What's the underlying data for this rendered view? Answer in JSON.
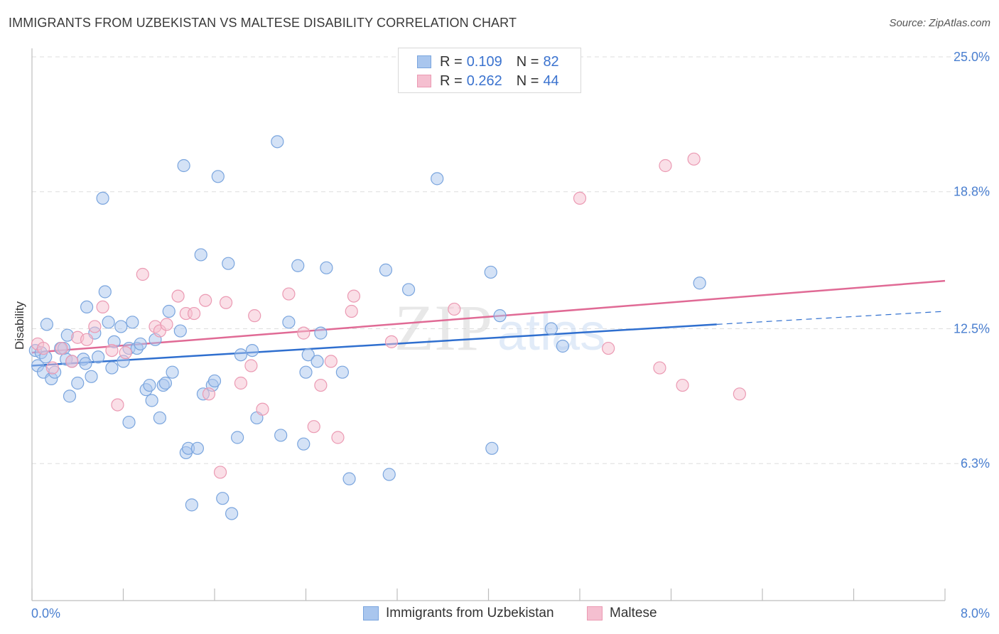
{
  "title": "IMMIGRANTS FROM UZBEKISTAN VS MALTESE DISABILITY CORRELATION CHART",
  "source": "Source: ZipAtlas.com",
  "watermark": {
    "zip": "ZIP",
    "atlas": "atlas"
  },
  "legend": {
    "rows": [
      {
        "r_label": "R =",
        "r_value": "0.109",
        "n_label": "N =",
        "n_value": "82"
      },
      {
        "r_label": "R =",
        "r_value": "0.262",
        "n_label": "N =",
        "n_value": "44"
      }
    ]
  },
  "bottom_legend": {
    "items": [
      "Immigrants from Uzbekistan",
      "Maltese"
    ]
  },
  "colors": {
    "blue_fill": "#a9c6ee",
    "blue_stroke": "#7aa5de",
    "blue_line": "#2f6fcf",
    "pink_fill": "#f5bfd0",
    "pink_stroke": "#eb9ab3",
    "pink_line": "#e06a95",
    "grid": "#dedede",
    "tick_label": "#4a7fd0"
  },
  "chart_data": {
    "type": "scatter",
    "title": "IMMIGRANTS FROM UZBEKISTAN VS MALTESE DISABILITY CORRELATION CHART",
    "xlabel": "",
    "ylabel": "Disability",
    "xlim": [
      0.0,
      8.0
    ],
    "ylim": [
      0.0,
      25.0
    ],
    "x_tick_labels": [
      "0.0%",
      "8.0%"
    ],
    "y_ticks": [
      6.3,
      12.5,
      18.8,
      25.0
    ],
    "y_tick_labels": [
      "6.3%",
      "12.5%",
      "18.8%",
      "25.0%"
    ],
    "grid": "horizontal dashed",
    "legend_position": "top-center",
    "series": [
      {
        "name": "Immigrants from Uzbekistan",
        "color": "#a9c6ee",
        "r": 0.109,
        "n": 82,
        "trend": {
          "x": [
            0.0,
            6.0
          ],
          "y": [
            10.8,
            12.7
          ],
          "dashed_extension": {
            "x": [
              6.0,
              8.0
            ],
            "y": [
              12.7,
              13.3
            ]
          }
        },
        "points": [
          [
            0.03,
            11.5
          ],
          [
            0.05,
            10.8
          ],
          [
            0.08,
            11.4
          ],
          [
            0.1,
            10.5
          ],
          [
            0.13,
            12.7
          ],
          [
            0.17,
            10.2
          ],
          [
            0.2,
            10.5
          ],
          [
            0.25,
            11.6
          ],
          [
            0.28,
            11.6
          ],
          [
            0.3,
            11.1
          ],
          [
            0.31,
            12.2
          ],
          [
            0.33,
            9.4
          ],
          [
            0.4,
            10.0
          ],
          [
            0.45,
            11.1
          ],
          [
            0.47,
            10.9
          ],
          [
            0.48,
            13.5
          ],
          [
            0.52,
            10.3
          ],
          [
            0.55,
            12.3
          ],
          [
            0.58,
            11.2
          ],
          [
            0.62,
            18.5
          ],
          [
            0.64,
            14.2
          ],
          [
            0.67,
            12.8
          ],
          [
            0.7,
            10.7
          ],
          [
            0.72,
            11.9
          ],
          [
            0.78,
            12.6
          ],
          [
            0.8,
            11.0
          ],
          [
            0.85,
            11.6
          ],
          [
            0.85,
            8.2
          ],
          [
            0.88,
            12.8
          ],
          [
            0.92,
            11.6
          ],
          [
            0.95,
            11.8
          ],
          [
            1.0,
            9.7
          ],
          [
            1.03,
            9.9
          ],
          [
            1.05,
            9.2
          ],
          [
            1.08,
            12.0
          ],
          [
            1.12,
            8.4
          ],
          [
            1.15,
            9.9
          ],
          [
            1.17,
            10.0
          ],
          [
            1.2,
            13.3
          ],
          [
            1.23,
            10.5
          ],
          [
            1.3,
            12.4
          ],
          [
            1.33,
            20.0
          ],
          [
            1.35,
            6.8
          ],
          [
            1.37,
            7.0
          ],
          [
            1.4,
            4.4
          ],
          [
            1.45,
            7.0
          ],
          [
            1.48,
            15.9
          ],
          [
            1.5,
            9.5
          ],
          [
            1.58,
            9.9
          ],
          [
            1.6,
            10.1
          ],
          [
            1.63,
            19.5
          ],
          [
            1.67,
            4.7
          ],
          [
            1.72,
            15.5
          ],
          [
            1.75,
            4.0
          ],
          [
            1.8,
            7.5
          ],
          [
            1.83,
            11.3
          ],
          [
            1.93,
            11.5
          ],
          [
            1.97,
            8.4
          ],
          [
            2.15,
            21.1
          ],
          [
            2.18,
            7.6
          ],
          [
            2.25,
            12.8
          ],
          [
            2.33,
            15.4
          ],
          [
            2.38,
            7.2
          ],
          [
            2.4,
            10.5
          ],
          [
            2.42,
            11.3
          ],
          [
            2.5,
            11.0
          ],
          [
            2.53,
            12.3
          ],
          [
            2.58,
            15.3
          ],
          [
            2.72,
            10.5
          ],
          [
            2.78,
            5.6
          ],
          [
            3.1,
            15.2
          ],
          [
            3.13,
            5.8
          ],
          [
            3.3,
            14.3
          ],
          [
            3.55,
            19.4
          ],
          [
            4.02,
            15.1
          ],
          [
            4.03,
            7.0
          ],
          [
            4.1,
            13.1
          ],
          [
            4.55,
            12.5
          ],
          [
            4.65,
            11.7
          ],
          [
            5.85,
            14.6
          ],
          [
            0.12,
            11.2
          ],
          [
            0.35,
            11.0
          ]
        ]
      },
      {
        "name": "Maltese",
        "color": "#f5bfd0",
        "r": 0.262,
        "n": 44,
        "trend": {
          "x": [
            0.0,
            8.0
          ],
          "y": [
            11.4,
            14.7
          ]
        },
        "points": [
          [
            0.05,
            11.8
          ],
          [
            0.1,
            11.6
          ],
          [
            0.18,
            10.7
          ],
          [
            0.26,
            11.6
          ],
          [
            0.35,
            11.0
          ],
          [
            0.4,
            12.1
          ],
          [
            0.48,
            12.0
          ],
          [
            0.55,
            12.6
          ],
          [
            0.62,
            13.5
          ],
          [
            0.7,
            11.5
          ],
          [
            0.75,
            9.0
          ],
          [
            0.82,
            11.4
          ],
          [
            0.97,
            15.0
          ],
          [
            1.08,
            12.6
          ],
          [
            1.12,
            12.4
          ],
          [
            1.18,
            12.7
          ],
          [
            1.28,
            14.0
          ],
          [
            1.35,
            13.2
          ],
          [
            1.42,
            13.2
          ],
          [
            1.52,
            13.8
          ],
          [
            1.55,
            9.5
          ],
          [
            1.65,
            5.9
          ],
          [
            1.7,
            13.7
          ],
          [
            1.83,
            10.0
          ],
          [
            1.92,
            10.8
          ],
          [
            1.95,
            13.1
          ],
          [
            2.02,
            8.8
          ],
          [
            2.25,
            14.1
          ],
          [
            2.38,
            12.3
          ],
          [
            2.47,
            8.0
          ],
          [
            2.53,
            9.9
          ],
          [
            2.62,
            11.0
          ],
          [
            2.68,
            7.5
          ],
          [
            2.8,
            13.3
          ],
          [
            2.82,
            14.0
          ],
          [
            3.15,
            11.9
          ],
          [
            3.7,
            13.4
          ],
          [
            4.8,
            18.5
          ],
          [
            5.05,
            11.6
          ],
          [
            5.5,
            10.7
          ],
          [
            5.55,
            20.0
          ],
          [
            5.7,
            9.9
          ],
          [
            5.8,
            20.3
          ],
          [
            6.2,
            9.5
          ]
        ]
      }
    ]
  }
}
